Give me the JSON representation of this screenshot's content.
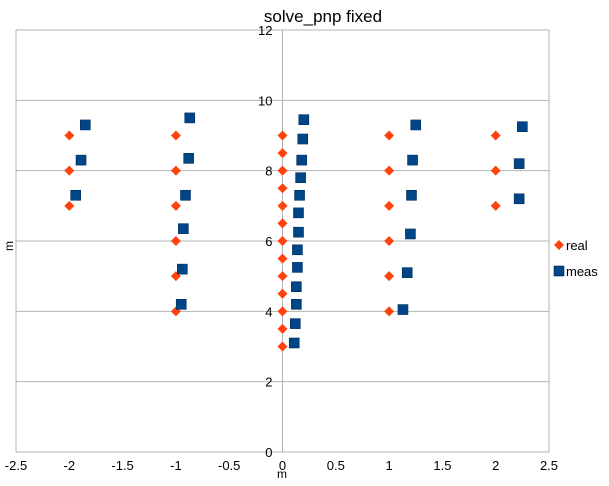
{
  "chart_data": {
    "type": "scatter",
    "title": "solve_pnp fixed",
    "xlabel": "m",
    "ylabel": "m",
    "xlim": [
      -2.5,
      2.5
    ],
    "ylim": [
      0,
      12
    ],
    "xticks": [
      "-2.5",
      "-2",
      "-1.5",
      "-1",
      "-0.5",
      "0",
      "0.5",
      "1",
      "1.5",
      "2",
      "2.5"
    ],
    "yticks": [
      "0",
      "2",
      "4",
      "6",
      "8",
      "10",
      "12"
    ],
    "grid": "horizontal",
    "legend_position": "right",
    "series": [
      {
        "name": "real",
        "marker": "diamond",
        "color": "#ff420e",
        "points": [
          [
            -2,
            9
          ],
          [
            -2,
            8
          ],
          [
            -2,
            7
          ],
          [
            -1,
            9
          ],
          [
            -1,
            8
          ],
          [
            -1,
            7
          ],
          [
            -1,
            6
          ],
          [
            -1,
            5
          ],
          [
            -1,
            4
          ],
          [
            0,
            9
          ],
          [
            0,
            8.5
          ],
          [
            0,
            8
          ],
          [
            0,
            7.5
          ],
          [
            0,
            7
          ],
          [
            0,
            6.5
          ],
          [
            0,
            6
          ],
          [
            0,
            5.5
          ],
          [
            0,
            5
          ],
          [
            0,
            4.5
          ],
          [
            0,
            4
          ],
          [
            0,
            3.5
          ],
          [
            0,
            3
          ],
          [
            1,
            9
          ],
          [
            1,
            8
          ],
          [
            1,
            7
          ],
          [
            1,
            6
          ],
          [
            1,
            5
          ],
          [
            1,
            4
          ],
          [
            2,
            9
          ],
          [
            2,
            8
          ],
          [
            2,
            7
          ]
        ]
      },
      {
        "name": "meas",
        "marker": "square",
        "color": "#004586",
        "points": [
          [
            -1.85,
            9.3
          ],
          [
            -1.89,
            8.3
          ],
          [
            -1.94,
            7.3
          ],
          [
            -0.87,
            9.5
          ],
          [
            -0.88,
            8.35
          ],
          [
            -0.91,
            7.3
          ],
          [
            -0.93,
            6.35
          ],
          [
            -0.94,
            5.2
          ],
          [
            -0.95,
            4.2
          ],
          [
            0.2,
            9.45
          ],
          [
            0.19,
            8.9
          ],
          [
            0.18,
            8.3
          ],
          [
            0.17,
            7.8
          ],
          [
            0.16,
            7.3
          ],
          [
            0.15,
            6.8
          ],
          [
            0.15,
            6.25
          ],
          [
            0.14,
            5.75
          ],
          [
            0.14,
            5.25
          ],
          [
            0.13,
            4.7
          ],
          [
            0.13,
            4.2
          ],
          [
            0.12,
            3.65
          ],
          [
            0.11,
            3.1
          ],
          [
            1.25,
            9.3
          ],
          [
            1.22,
            8.3
          ],
          [
            1.21,
            7.3
          ],
          [
            1.2,
            6.2
          ],
          [
            1.17,
            5.1
          ],
          [
            1.13,
            4.05
          ],
          [
            2.25,
            9.25
          ],
          [
            2.22,
            8.2
          ],
          [
            2.22,
            7.2
          ]
        ]
      }
    ]
  }
}
